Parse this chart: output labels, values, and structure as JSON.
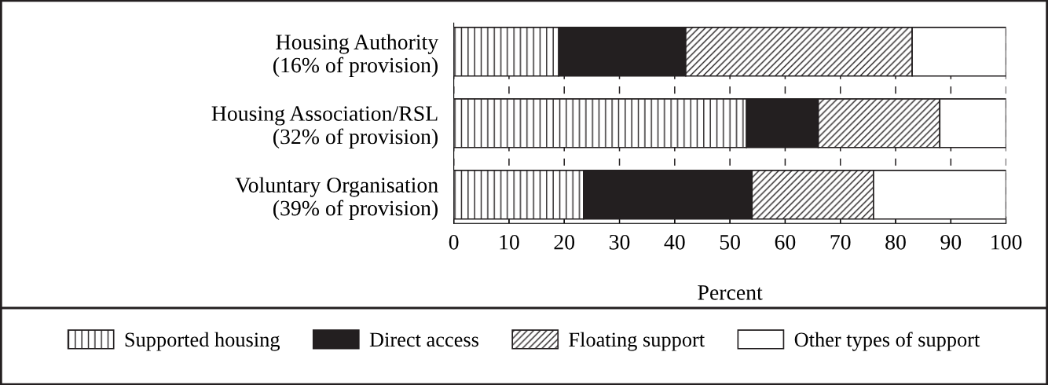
{
  "chart_data": {
    "type": "bar",
    "orientation": "horizontal",
    "stacked": true,
    "xlabel": "Percent",
    "categories": [
      "Housing Authority\n(16% of provision)",
      "Housing Association/RSL\n(32% of provision)",
      "Voluntary Organisation\n(39% of provision)"
    ],
    "series": [
      {
        "name": "Supported housing",
        "color": "#231f20",
        "values": [
          19,
          53,
          23.5
        ]
      },
      {
        "name": "Direct access",
        "color": "#231f20",
        "values": [
          23,
          13,
          30.5
        ]
      },
      {
        "name": "Floating support",
        "color": "#231f20",
        "values": [
          41,
          22,
          22
        ]
      },
      {
        "name": "Other types of support",
        "color": "#ffffff",
        "values": [
          17,
          12,
          24
        ]
      }
    ],
    "xlim": [
      0,
      100
    ],
    "xticks": [
      0,
      10,
      20,
      30,
      40,
      50,
      60,
      70,
      80,
      90,
      100
    ],
    "grid": "x",
    "legend": "bottom"
  }
}
